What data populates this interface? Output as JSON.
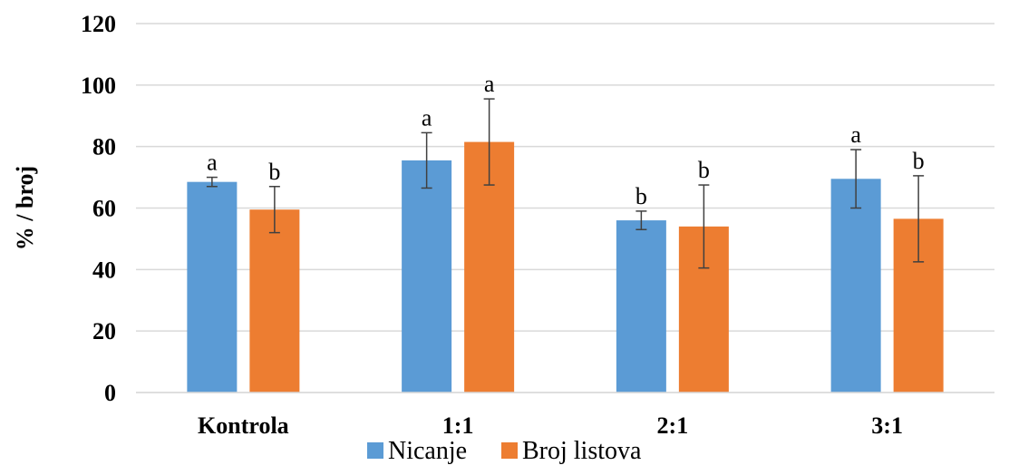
{
  "chart_data": {
    "type": "bar",
    "title": "",
    "xlabel": "",
    "ylabel": "% / broj",
    "ylim": [
      0,
      120
    ],
    "yticks": [
      0,
      20,
      40,
      60,
      80,
      100,
      120
    ],
    "grid": true,
    "legend_position": "bottom",
    "categories": [
      "Kontrola",
      "1:1",
      "2:1",
      "3:1"
    ],
    "series": [
      {
        "name": "Nicanje",
        "color": "#5B9BD5",
        "values": [
          68.5,
          75.5,
          56,
          69.5
        ],
        "error": [
          1.5,
          9,
          3,
          9.5
        ],
        "labels": [
          "a",
          "a",
          "b",
          "a"
        ]
      },
      {
        "name": "Broj listova",
        "color": "#ED7D31",
        "values": [
          59.5,
          81.5,
          54,
          56.5
        ],
        "error": [
          7.5,
          14,
          13.5,
          14
        ],
        "labels": [
          "b",
          "a",
          "b",
          "b"
        ]
      }
    ]
  }
}
